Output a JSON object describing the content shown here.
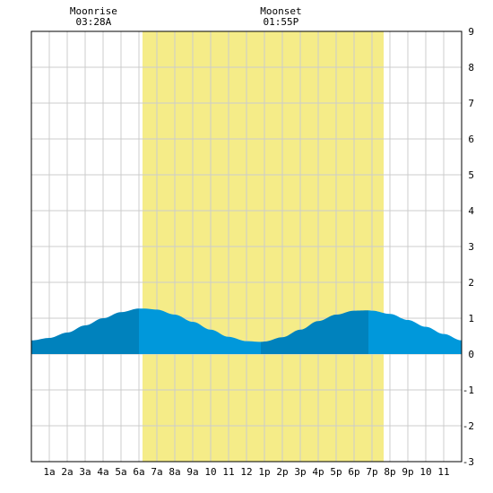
{
  "chart_data": {
    "type": "area",
    "title": "",
    "xlabel": "",
    "ylabel": "",
    "x_tick_labels": [
      "1a",
      "2a",
      "3a",
      "4a",
      "5a",
      "6a",
      "7a",
      "8a",
      "9a",
      "10",
      "11",
      "12",
      "1p",
      "2p",
      "3p",
      "4p",
      "5p",
      "6p",
      "7p",
      "8p",
      "9p",
      "10",
      "11"
    ],
    "y_ticks": [
      9,
      8,
      7,
      6,
      5,
      4,
      3,
      2,
      1,
      0,
      -1,
      -2,
      -3
    ],
    "xlim": [
      0,
      24
    ],
    "ylim": [
      -3,
      9
    ],
    "grid": true,
    "daylight": {
      "start_hour": 6.2,
      "end_hour": 19.65
    },
    "moonrise": {
      "label": "Moonrise",
      "time": "03:28A",
      "hour": 3.47
    },
    "moonset": {
      "label": "Moonset",
      "time": "01:55P",
      "hour": 13.92
    },
    "series": [
      {
        "x": [
          0,
          1,
          2,
          3,
          4,
          5,
          6,
          6.3,
          7,
          8,
          9,
          10,
          11,
          12,
          12.8,
          13,
          14,
          15,
          16,
          17,
          18,
          18.8,
          19,
          20,
          21,
          22,
          23,
          24
        ],
        "values": [
          0.38,
          0.45,
          0.6,
          0.8,
          1.0,
          1.17,
          1.27,
          1.27,
          1.24,
          1.1,
          0.9,
          0.68,
          0.48,
          0.36,
          0.34,
          0.35,
          0.47,
          0.68,
          0.92,
          1.1,
          1.21,
          1.22,
          1.21,
          1.12,
          0.95,
          0.76,
          0.56,
          0.38
        ]
      }
    ],
    "colors": {
      "tide_rising": "#0082BD",
      "tide_falling": "#0098DB",
      "daylight": "#F5EC88",
      "grid": "#CCCCCC"
    }
  }
}
